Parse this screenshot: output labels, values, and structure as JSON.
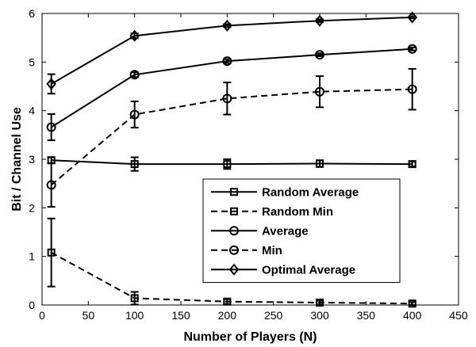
{
  "chart_data": {
    "type": "line",
    "xlabel": "Number of Players (N)",
    "ylabel": "Bit / Channel Use",
    "xlim": [
      0,
      450
    ],
    "ylim": [
      0,
      6
    ],
    "xticks": [
      0,
      50,
      100,
      150,
      200,
      250,
      300,
      350,
      400,
      450
    ],
    "yticks": [
      0,
      1,
      2,
      3,
      4,
      5,
      6
    ],
    "grid": false,
    "legend_position": "center-right",
    "x": [
      10,
      100,
      200,
      300,
      400
    ],
    "series": [
      {
        "name": "Random Average",
        "marker": "square",
        "dash": "solid",
        "values": [
          2.98,
          2.9,
          2.9,
          2.91,
          2.9
        ],
        "err": [
          0.06,
          0.14,
          0.1,
          0.07,
          0.05
        ]
      },
      {
        "name": "Random Min",
        "marker": "square",
        "dash": "dashed",
        "values": [
          1.08,
          0.14,
          0.07,
          0.05,
          0.03
        ],
        "err": [
          0.7,
          0.13,
          0.05,
          0.04,
          0.03
        ]
      },
      {
        "name": "Average",
        "marker": "circle",
        "dash": "solid",
        "values": [
          3.66,
          4.74,
          5.02,
          5.15,
          5.27
        ],
        "err": [
          0.27,
          0.05,
          0.04,
          0.03,
          0.03
        ]
      },
      {
        "name": "Min",
        "marker": "circle",
        "dash": "dashed",
        "values": [
          2.47,
          3.92,
          4.25,
          4.39,
          4.44
        ],
        "err": [
          0.45,
          0.27,
          0.33,
          0.32,
          0.42
        ]
      },
      {
        "name": "Optimal Average",
        "marker": "diamond",
        "dash": "solid",
        "values": [
          4.55,
          5.54,
          5.75,
          5.85,
          5.92
        ],
        "err": [
          0.2,
          0.05,
          0.03,
          0.03,
          0.02
        ]
      }
    ]
  }
}
